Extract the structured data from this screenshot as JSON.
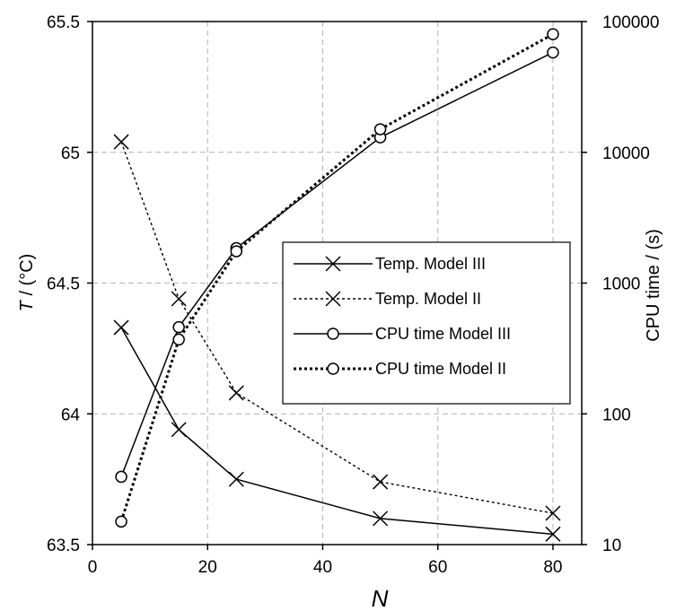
{
  "chart_data": {
    "type": "line",
    "xlabel": "N",
    "ylabel_italic": "T",
    "ylabel_rest": " / (°C)",
    "y2label": "CPU time / (s)",
    "xlim": [
      0,
      85
    ],
    "ylim": [
      63.5,
      65.5
    ],
    "y2lim": [
      10,
      100000
    ],
    "y2_scale": "log",
    "grid": true,
    "legend_position": "center-right",
    "x_ticks": [
      "0",
      "20",
      "40",
      "60",
      "80"
    ],
    "y_ticks": [
      "63.5",
      "64",
      "64.5",
      "65",
      "65.5"
    ],
    "y2_ticks": [
      "10",
      "100",
      "1000",
      "10000",
      "100000"
    ],
    "series": [
      {
        "name": "Temp. Model III",
        "axis": "left",
        "marker": "x",
        "dash": "solid",
        "x": [
          5,
          15,
          25,
          50,
          80
        ],
        "y": [
          64.33,
          63.94,
          63.75,
          63.6,
          63.54
        ]
      },
      {
        "name": "Temp. Model II",
        "axis": "left",
        "marker": "x",
        "dash": "dotted",
        "x": [
          5,
          15,
          25,
          50,
          80
        ],
        "y": [
          65.04,
          64.44,
          64.08,
          63.74,
          63.62
        ]
      },
      {
        "name": "CPU time Model III",
        "axis": "right",
        "marker": "o",
        "dash": "solid",
        "x": [
          5,
          15,
          25,
          50,
          80
        ],
        "y": [
          33,
          460,
          1850,
          13000,
          58000
        ]
      },
      {
        "name": "CPU time Model II",
        "axis": "right",
        "marker": "o",
        "dash": "heavy-dotted",
        "x": [
          5,
          15,
          25,
          50,
          80
        ],
        "y": [
          15,
          370,
          1750,
          15000,
          80000
        ]
      }
    ]
  }
}
